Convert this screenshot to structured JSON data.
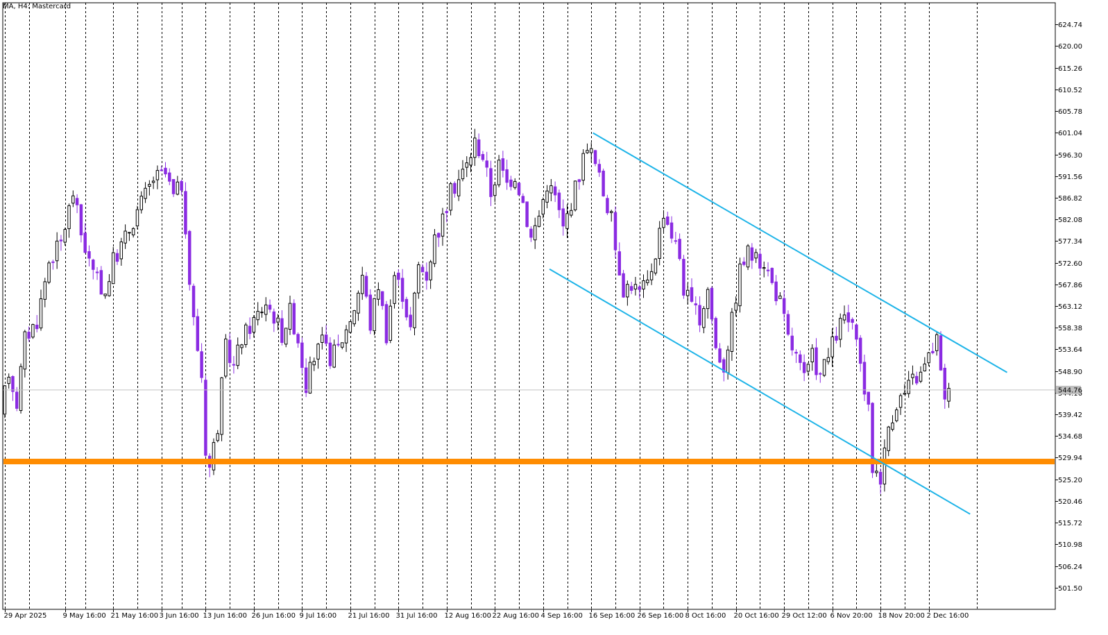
{
  "window": {
    "title": "MA, H4:  Mastercard"
  },
  "colors": {
    "background": "#ffffff",
    "frame": "#000000",
    "grid": "#000000",
    "bull_candle": "#000000",
    "bear_candle": "#8a2be2",
    "channel": "#1eb4e8",
    "support": "#ff8c00",
    "current_price_line": "#c0c0c0",
    "current_price_label_bg": "#c0c0c0",
    "current_price_label_text": "#ffffff"
  },
  "chart_data": {
    "type": "candlestick",
    "title": "MA, H4:  Mastercard",
    "symbol": "MA",
    "timeframe": "H4",
    "ylim": [
      496.76,
      629.48
    ],
    "grid": "vertical-dashed",
    "current_price": 544.76,
    "current_price_label": "544.76",
    "y_ticks": [
      "624.74",
      "620.00",
      "615.26",
      "610.52",
      "605.78",
      "601.04",
      "596.30",
      "591.56",
      "586.82",
      "582.08",
      "577.34",
      "572.60",
      "567.86",
      "563.12",
      "558.38",
      "553.64",
      "548.90",
      "544.16",
      "539.42",
      "534.68",
      "529.94",
      "525.20",
      "520.46",
      "515.72",
      "510.98",
      "506.24",
      "501.50"
    ],
    "x_ticks": [
      "29 Apr 2025",
      "9 May 16:00",
      "21 May 16:00",
      "3 Jun 16:00",
      "13 Jun 16:00",
      "26 Jun 16:00",
      "9 Jul 16:00",
      "21 Jul 16:00",
      "31 Jul 16:00",
      "12 Aug 16:00",
      "22 Aug 16:00",
      "4 Sep 16:00",
      "16 Sep 16:00",
      "26 Sep 16:00",
      "8 Oct 16:00",
      "20 Oct 16:00",
      "29 Oct 12:00",
      "6 Nov 20:00",
      "18 Nov 20:00",
      "2 Dec 16:00"
    ],
    "x_tick_index": [
      0,
      15,
      27,
      39,
      50,
      62,
      74,
      86,
      98,
      110,
      122,
      134,
      146,
      158,
      170,
      182,
      194,
      206,
      218,
      230
    ],
    "bar_count": 236,
    "visible_bars": 262,
    "extra_gridline_bars": [
      6,
      20,
      33,
      44,
      56,
      68,
      80,
      92,
      104,
      116,
      128,
      140,
      152,
      164,
      176,
      188,
      200,
      212,
      224,
      242
    ],
    "anchors": [
      [
        0,
        539
      ],
      [
        2,
        549
      ],
      [
        4,
        542
      ],
      [
        6,
        556
      ],
      [
        9,
        560
      ],
      [
        12,
        573
      ],
      [
        15,
        577
      ],
      [
        18,
        588
      ],
      [
        20,
        579
      ],
      [
        23,
        570
      ],
      [
        26,
        566
      ],
      [
        28,
        573
      ],
      [
        31,
        578
      ],
      [
        34,
        584
      ],
      [
        38,
        591
      ],
      [
        41,
        592
      ],
      [
        43,
        587
      ],
      [
        45,
        590
      ],
      [
        46,
        577
      ],
      [
        48,
        560
      ],
      [
        50,
        548
      ],
      [
        51,
        532
      ],
      [
        52,
        528
      ],
      [
        54,
        537
      ],
      [
        56,
        554
      ],
      [
        58,
        550
      ],
      [
        60,
        556
      ],
      [
        63,
        560
      ],
      [
        66,
        564
      ],
      [
        68,
        561
      ],
      [
        70,
        557
      ],
      [
        72,
        562
      ],
      [
        74,
        556
      ],
      [
        76,
        546
      ],
      [
        78,
        552
      ],
      [
        80,
        555
      ],
      [
        82,
        552
      ],
      [
        84,
        554
      ],
      [
        86,
        558
      ],
      [
        88,
        563
      ],
      [
        90,
        570
      ],
      [
        92,
        559
      ],
      [
        94,
        568
      ],
      [
        96,
        557
      ],
      [
        98,
        570
      ],
      [
        100,
        566
      ],
      [
        102,
        558
      ],
      [
        104,
        572
      ],
      [
        106,
        570
      ],
      [
        108,
        578
      ],
      [
        110,
        582
      ],
      [
        112,
        588
      ],
      [
        114,
        591
      ],
      [
        116,
        594
      ],
      [
        118,
        599
      ],
      [
        120,
        596
      ],
      [
        122,
        588
      ],
      [
        124,
        594
      ],
      [
        126,
        590
      ],
      [
        128,
        592
      ],
      [
        130,
        586
      ],
      [
        132,
        578
      ],
      [
        134,
        583
      ],
      [
        136,
        590
      ],
      [
        138,
        587
      ],
      [
        140,
        580
      ],
      [
        142,
        586
      ],
      [
        144,
        592
      ],
      [
        146,
        599
      ],
      [
        148,
        594
      ],
      [
        150,
        588
      ],
      [
        152,
        582
      ],
      [
        153,
        576
      ],
      [
        155,
        567
      ],
      [
        157,
        568
      ],
      [
        159,
        566
      ],
      [
        161,
        568
      ],
      [
        163,
        575
      ],
      [
        165,
        584
      ],
      [
        167,
        579
      ],
      [
        169,
        574
      ],
      [
        170,
        567
      ],
      [
        172,
        563
      ],
      [
        174,
        560
      ],
      [
        176,
        567
      ],
      [
        178,
        554
      ],
      [
        180,
        550
      ],
      [
        182,
        560
      ],
      [
        184,
        571
      ],
      [
        186,
        575
      ],
      [
        188,
        573
      ],
      [
        190,
        573
      ],
      [
        192,
        568
      ],
      [
        194,
        564
      ],
      [
        196,
        556
      ],
      [
        198,
        552
      ],
      [
        200,
        547
      ],
      [
        202,
        552
      ],
      [
        204,
        548
      ],
      [
        206,
        552
      ],
      [
        208,
        557
      ],
      [
        210,
        561
      ],
      [
        212,
        558
      ],
      [
        214,
        550
      ],
      [
        216,
        540
      ],
      [
        217,
        528
      ],
      [
        219,
        526
      ],
      [
        220,
        531
      ],
      [
        221,
        537
      ],
      [
        223,
        542
      ],
      [
        225,
        544
      ],
      [
        227,
        547
      ],
      [
        229,
        548
      ],
      [
        231,
        552
      ],
      [
        233,
        556
      ],
      [
        234,
        548
      ],
      [
        235,
        544
      ]
    ],
    "channel_upper": {
      "x1": 146.4,
      "y1": 601.0,
      "x2": 249.5,
      "y2": 548.6
    },
    "channel_lower": {
      "x1": 135.6,
      "y1": 571.2,
      "x2": 240.3,
      "y2": 517.6
    },
    "support_level": 529.1
  }
}
